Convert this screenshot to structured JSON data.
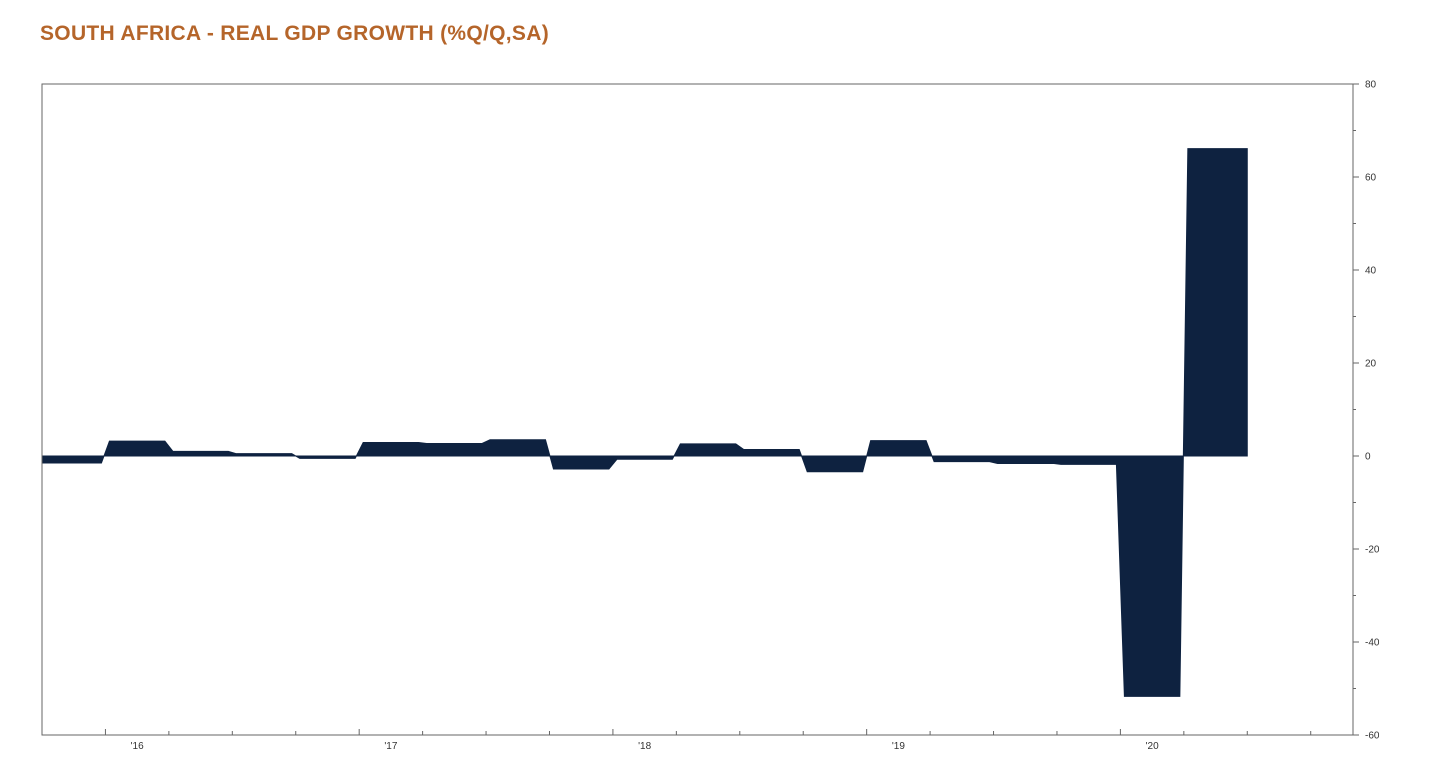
{
  "title": "SOUTH AFRICA - REAL GDP GROWTH (%Q/Q,SA)",
  "colors": {
    "title": "#b5652a",
    "area": "#0e2240",
    "axis": "#666666"
  },
  "chart_data": {
    "type": "area",
    "title": "SOUTH AFRICA - REAL GDP GROWTH (%Q/Q,SA)",
    "xlabel": "",
    "ylabel": "",
    "y_axis_side": "right",
    "ylim": [
      -60,
      80
    ],
    "yticks": [
      -60,
      -40,
      -20,
      0,
      20,
      40,
      60,
      80
    ],
    "xlim": [
      "2015-10",
      "2020-12"
    ],
    "x_tick_labels": [
      {
        "date": "2016-01",
        "label": "'16"
      },
      {
        "date": "2017-01",
        "label": "'17"
      },
      {
        "date": "2018-01",
        "label": "'18"
      },
      {
        "date": "2019-01",
        "label": "'19"
      },
      {
        "date": "2020-01",
        "label": "'20"
      }
    ],
    "grid": false,
    "legend": "none",
    "series": [
      {
        "x": [
          "2015-Q4",
          "2016-Q1",
          "2016-Q2",
          "2016-Q3",
          "2016-Q4",
          "2017-Q1",
          "2017-Q2",
          "2017-Q3",
          "2017-Q4",
          "2018-Q1",
          "2018-Q2",
          "2018-Q3",
          "2018-Q4",
          "2019-Q1",
          "2019-Q2",
          "2019-Q3",
          "2019-Q4",
          "2020-Q1",
          "2020-Q2",
          "2020-Q3"
        ],
        "values": [
          -1.5,
          3.2,
          1.0,
          0.5,
          -0.5,
          2.9,
          2.7,
          3.5,
          -2.8,
          -0.7,
          2.6,
          1.4,
          -3.4,
          3.3,
          -1.2,
          -1.6,
          -1.8,
          -51.7,
          66.1,
          null
        ]
      }
    ]
  }
}
